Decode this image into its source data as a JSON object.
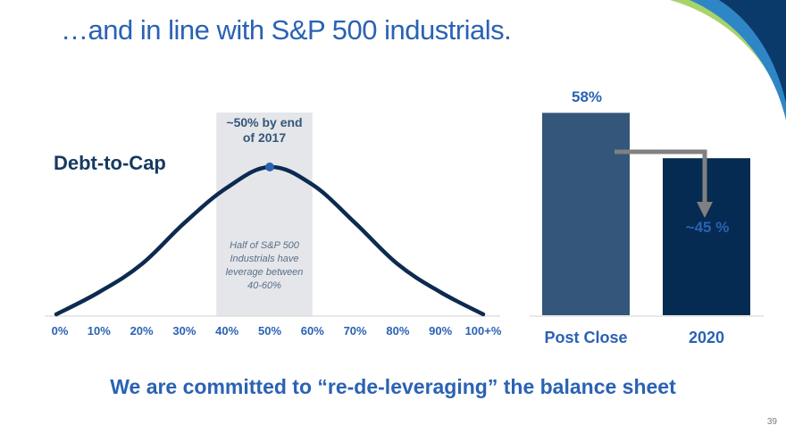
{
  "slide": {
    "title": "…and in line with S&P 500 industrials.",
    "footer": "We are committed to “re-de-leveraging” the balance sheet",
    "page_number": "39"
  },
  "colors": {
    "title_blue": "#2a62b4",
    "curve": "#0d2a50",
    "band": "#e4e6ea",
    "bar_post_close": "#34567a",
    "bar_2020": "#062b52",
    "arrow": "#808080",
    "corner_dark": "#0a3a6a",
    "corner_mid": "#2f86c6",
    "corner_light": "#a9d36a"
  },
  "chart_data": [
    {
      "type": "line",
      "title": "Debt-to-Cap",
      "tick_labels": [
        "0%",
        "10%",
        "20%",
        "30%",
        "40%",
        "50%",
        "60%",
        "70%",
        "80%",
        "90%",
        "100+%"
      ],
      "x": [
        0,
        10,
        20,
        30,
        40,
        50,
        60,
        70,
        80,
        90,
        100
      ],
      "y": [
        0.0,
        0.15,
        0.34,
        0.62,
        0.86,
        1.0,
        0.88,
        0.62,
        0.34,
        0.15,
        0.0
      ],
      "highlight_band": {
        "range": [
          40,
          60
        ],
        "label": "~50% by end of 2017",
        "note": "Half of S&P 500 Industrials have leverage between 40-60%"
      },
      "marker": {
        "x": 50,
        "y": 1.0
      },
      "grid": false
    },
    {
      "type": "bar",
      "categories": [
        "Post Close",
        "2020"
      ],
      "values": [
        58,
        45
      ],
      "value_labels": [
        "58%",
        "~45 %"
      ],
      "ylim": [
        0,
        65
      ],
      "annotation": "arrow from Post Close bar to 2020 bar",
      "grid": false
    }
  ]
}
